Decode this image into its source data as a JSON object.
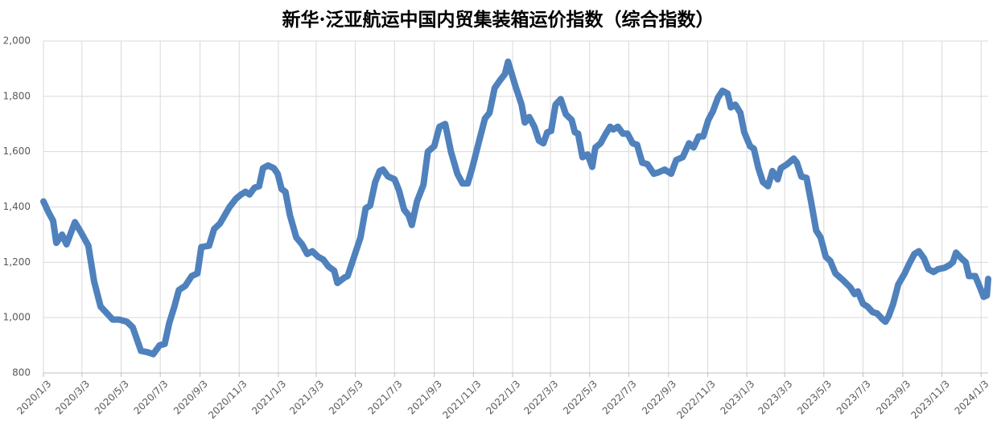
{
  "chart_data": {
    "type": "line",
    "title": "新华·泛亚航运中国内贸集装箱运价指数（综合指数）",
    "xlim": [
      "2020-01-03",
      "2024-01-14"
    ],
    "xticks": [
      {
        "value": "2020-01-03",
        "label": "2020/1/3"
      },
      {
        "value": "2020-03-03",
        "label": "2020/3/3"
      },
      {
        "value": "2020-05-03",
        "label": "2020/5/3"
      },
      {
        "value": "2020-07-03",
        "label": "2020/7/3"
      },
      {
        "value": "2020-09-03",
        "label": "2020/9/3"
      },
      {
        "value": "2020-11-03",
        "label": "2020/11/3"
      },
      {
        "value": "2021-01-03",
        "label": "2021/1/3"
      },
      {
        "value": "2021-03-03",
        "label": "2021/3/3"
      },
      {
        "value": "2021-05-03",
        "label": "2021/5/3"
      },
      {
        "value": "2021-07-03",
        "label": "2021/7/3"
      },
      {
        "value": "2021-09-03",
        "label": "2021/9/3"
      },
      {
        "value": "2021-11-03",
        "label": "2021/11/3"
      },
      {
        "value": "2022-01-03",
        "label": "2022/1/3"
      },
      {
        "value": "2022-03-03",
        "label": "2022/3/3"
      },
      {
        "value": "2022-05-03",
        "label": "2022/5/3"
      },
      {
        "value": "2022-07-03",
        "label": "2022/7/3"
      },
      {
        "value": "2022-09-03",
        "label": "2022/9/3"
      },
      {
        "value": "2022-11-03",
        "label": "2022/11/3"
      },
      {
        "value": "2023-01-03",
        "label": "2023/1/3"
      },
      {
        "value": "2023-03-03",
        "label": "2023/3/3"
      },
      {
        "value": "2023-05-03",
        "label": "2023/5/3"
      },
      {
        "value": "2023-07-03",
        "label": "2023/7/3"
      },
      {
        "value": "2023-09-03",
        "label": "2023/9/3"
      },
      {
        "value": "2023-11-03",
        "label": "2023/11/3"
      },
      {
        "value": "2024-01-03",
        "label": "2024/1/3"
      }
    ],
    "ylim": [
      800,
      2000
    ],
    "yticks": [
      800,
      {
        "value": 1000,
        "label": "1,000"
      },
      {
        "value": 1200,
        "label": "1,200"
      },
      {
        "value": 1400,
        "label": "1,400"
      },
      {
        "value": 1600,
        "label": "1,600"
      },
      {
        "value": 1800,
        "label": "1,800"
      },
      {
        "value": 2000,
        "label": "2,000"
      }
    ],
    "grid": true,
    "x": [
      "2020-01-03",
      "2020-01-11",
      "2020-01-18",
      "2020-01-23",
      "2020-02-01",
      "2020-02-08",
      "2020-02-21",
      "2020-03-01",
      "2020-03-13",
      "2020-03-22",
      "2020-04-01",
      "2020-04-11",
      "2020-04-20",
      "2020-04-30",
      "2020-05-12",
      "2020-05-21",
      "2020-06-03",
      "2020-06-13",
      "2020-06-22",
      "2020-07-02",
      "2020-07-10",
      "2020-07-17",
      "2020-07-25",
      "2020-08-01",
      "2020-08-11",
      "2020-08-21",
      "2020-08-30",
      "2020-09-05",
      "2020-09-17",
      "2020-09-25",
      "2020-10-04",
      "2020-10-19",
      "2020-10-29",
      "2020-11-06",
      "2020-11-13",
      "2020-11-19",
      "2020-11-27",
      "2020-12-04",
      "2020-12-10",
      "2020-12-18",
      "2020-12-27",
      "2021-01-02",
      "2021-01-08",
      "2021-01-14",
      "2021-01-21",
      "2021-01-31",
      "2021-02-09",
      "2021-02-17",
      "2021-02-25",
      "2021-03-06",
      "2021-03-14",
      "2021-03-22",
      "2021-03-31",
      "2021-04-05",
      "2021-04-16",
      "2021-04-21",
      "2021-05-01",
      "2021-05-11",
      "2021-05-19",
      "2021-05-26",
      "2021-06-03",
      "2021-06-10",
      "2021-06-15",
      "2021-06-23",
      "2021-07-03",
      "2021-07-10",
      "2021-07-18",
      "2021-07-25",
      "2021-07-30",
      "2021-08-07",
      "2021-08-17",
      "2021-08-24",
      "2021-09-03",
      "2021-09-11",
      "2021-09-20",
      "2021-09-29",
      "2021-10-09",
      "2021-10-17",
      "2021-10-25",
      "2021-11-01",
      "2021-11-11",
      "2021-11-21",
      "2021-11-28",
      "2021-12-06",
      "2021-12-15",
      "2021-12-22",
      "2021-12-27",
      "2022-01-07",
      "2022-01-17",
      "2022-01-22",
      "2022-01-29",
      "2022-02-06",
      "2022-02-13",
      "2022-02-20",
      "2022-02-26",
      "2022-03-04",
      "2022-03-11",
      "2022-03-19",
      "2022-03-27",
      "2022-04-05",
      "2022-04-10",
      "2022-04-15",
      "2022-04-22",
      "2022-04-30",
      "2022-05-07",
      "2022-05-12",
      "2022-05-20",
      "2022-05-27",
      "2022-06-04",
      "2022-06-09",
      "2022-06-16",
      "2022-06-24",
      "2022-07-01",
      "2022-07-09",
      "2022-07-16",
      "2022-07-24",
      "2022-08-01",
      "2022-08-11",
      "2022-08-18",
      "2022-08-28",
      "2022-09-07",
      "2022-09-15",
      "2022-09-25",
      "2022-10-05",
      "2022-10-12",
      "2022-10-20",
      "2022-10-27",
      "2022-11-04",
      "2022-11-11",
      "2022-11-19",
      "2022-11-26",
      "2022-12-04",
      "2022-12-09",
      "2022-12-16",
      "2022-12-24",
      "2022-12-30",
      "2023-01-08",
      "2023-01-14",
      "2023-01-21",
      "2023-01-28",
      "2023-02-05",
      "2023-02-12",
      "2023-02-20",
      "2023-02-25",
      "2023-03-07",
      "2023-03-17",
      "2023-03-22",
      "2023-03-29",
      "2023-04-06",
      "2023-04-13",
      "2023-04-21",
      "2023-04-28",
      "2023-05-06",
      "2023-05-13",
      "2023-05-21",
      "2023-06-02",
      "2023-06-13",
      "2023-06-20",
      "2023-06-25",
      "2023-07-03",
      "2023-07-10",
      "2023-07-18",
      "2023-07-25",
      "2023-08-02",
      "2023-08-07",
      "2023-08-12",
      "2023-08-19",
      "2023-08-27",
      "2023-09-06",
      "2023-09-13",
      "2023-09-21",
      "2023-09-28",
      "2023-10-06",
      "2023-10-13",
      "2023-10-21",
      "2023-10-28",
      "2023-11-07",
      "2023-11-15",
      "2023-11-20",
      "2023-11-25",
      "2023-12-03",
      "2023-12-10",
      "2023-12-15",
      "2023-12-25",
      "2024-01-02",
      "2024-01-07",
      "2024-01-12",
      "2024-01-14"
    ],
    "series": [
      {
        "color": "#4f81bd",
        "values": [
          1420,
          1380,
          1350,
          1270,
          1300,
          1265,
          1345,
          1310,
          1260,
          1130,
          1040,
          1015,
          993,
          993,
          985,
          965,
          880,
          875,
          868,
          900,
          905,
          980,
          1040,
          1100,
          1115,
          1150,
          1160,
          1255,
          1260,
          1320,
          1340,
          1400,
          1430,
          1445,
          1455,
          1445,
          1470,
          1475,
          1540,
          1550,
          1540,
          1520,
          1465,
          1455,
          1370,
          1290,
          1265,
          1230,
          1240,
          1220,
          1210,
          1185,
          1170,
          1125,
          1145,
          1150,
          1220,
          1290,
          1395,
          1405,
          1490,
          1530,
          1535,
          1510,
          1500,
          1460,
          1390,
          1370,
          1335,
          1420,
          1480,
          1600,
          1620,
          1690,
          1700,
          1600,
          1520,
          1485,
          1485,
          1540,
          1630,
          1720,
          1740,
          1830,
          1860,
          1880,
          1925,
          1840,
          1770,
          1705,
          1725,
          1690,
          1640,
          1630,
          1670,
          1675,
          1770,
          1790,
          1735,
          1715,
          1670,
          1665,
          1580,
          1590,
          1545,
          1615,
          1630,
          1660,
          1690,
          1680,
          1690,
          1665,
          1665,
          1630,
          1625,
          1560,
          1555,
          1520,
          1525,
          1535,
          1520,
          1570,
          1580,
          1630,
          1615,
          1655,
          1655,
          1715,
          1745,
          1795,
          1820,
          1810,
          1760,
          1770,
          1740,
          1670,
          1620,
          1610,
          1540,
          1490,
          1475,
          1530,
          1500,
          1540,
          1555,
          1575,
          1560,
          1510,
          1505,
          1420,
          1315,
          1290,
          1220,
          1205,
          1160,
          1135,
          1110,
          1085,
          1095,
          1050,
          1040,
          1020,
          1015,
          995,
          985,
          1005,
          1050,
          1120,
          1160,
          1195,
          1230,
          1240,
          1215,
          1175,
          1165,
          1175,
          1180,
          1190,
          1200,
          1235,
          1215,
          1200,
          1150,
          1150,
          1105,
          1075,
          1080,
          1140
        ]
      }
    ]
  }
}
